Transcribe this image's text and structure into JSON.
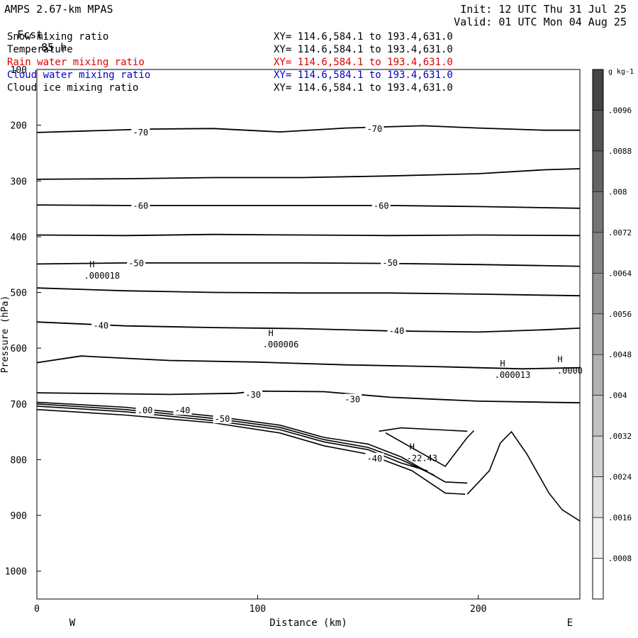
{
  "header": {
    "model": "AMPS 2.67-km MPAS",
    "forecast_label": "Fcst:",
    "forecast_value": "85 h",
    "init": "Init: 12 UTC Thu 31 Jul 25",
    "valid": "Valid: 01 UTC Mon 04 Aug 25"
  },
  "fields": [
    {
      "name": "Snow mixing ratio",
      "xy": "XY= 114.6,584.1 to 193.4,631.0",
      "color": "#000000"
    },
    {
      "name": "Temperature",
      "xy": "XY= 114.6,584.1 to 193.4,631.0",
      "color": "#000000"
    },
    {
      "name": "Rain water mixing ratio",
      "xy": "XY= 114.6,584.1 to 193.4,631.0",
      "color": "#e00000"
    },
    {
      "name": "Cloud water mixing ratio",
      "xy": "XY= 114.6,584.1 to 193.4,631.0",
      "color": "#0000cc"
    },
    {
      "name": "Cloud ice mixing ratio",
      "xy": "XY= 114.6,584.1 to 193.4,631.0",
      "color": "#000000"
    }
  ],
  "chart_data": {
    "type": "contour",
    "xlabel": "Distance (km)",
    "ylabel": "Pressure (hPa)",
    "xlim": [
      0,
      246
    ],
    "ylim": [
      100,
      1050
    ],
    "x_ticks": [
      0,
      100,
      200
    ],
    "x_tick_labels": [
      "0",
      "100",
      "200"
    ],
    "y_ticks": [
      100,
      200,
      300,
      400,
      500,
      600,
      700,
      800,
      900,
      1000
    ],
    "y_tick_labels": [
      "100",
      "200",
      "300",
      "400",
      "500",
      "600",
      "700",
      "800",
      "900",
      "1000"
    ],
    "left_label": "W",
    "right_label": "E",
    "temperature_contours": [
      {
        "label": "-70",
        "points": [
          [
            0,
            213
          ],
          [
            25,
            210
          ],
          [
            50,
            207
          ],
          [
            80,
            206
          ],
          [
            110,
            212
          ],
          [
            140,
            205
          ],
          [
            175,
            201
          ],
          [
            200,
            205
          ],
          [
            230,
            209
          ],
          [
            246,
            209
          ]
        ]
      },
      {
        "label": "",
        "points": [
          [
            0,
            297
          ],
          [
            40,
            296
          ],
          [
            80,
            294
          ],
          [
            120,
            294
          ],
          [
            160,
            291
          ],
          [
            200,
            287
          ],
          [
            230,
            280
          ],
          [
            246,
            278
          ]
        ]
      },
      {
        "label": "-60",
        "points": [
          [
            0,
            343
          ],
          [
            40,
            344
          ],
          [
            80,
            344
          ],
          [
            120,
            344
          ],
          [
            160,
            344
          ],
          [
            200,
            346
          ],
          [
            246,
            349
          ]
        ]
      },
      {
        "label": "",
        "points": [
          [
            0,
            397
          ],
          [
            40,
            398
          ],
          [
            80,
            396
          ],
          [
            120,
            397
          ],
          [
            160,
            398
          ],
          [
            200,
            397
          ],
          [
            246,
            398
          ]
        ]
      },
      {
        "label": "-50",
        "points": [
          [
            0,
            449
          ],
          [
            40,
            447
          ],
          [
            80,
            447
          ],
          [
            120,
            447
          ],
          [
            160,
            448
          ],
          [
            200,
            450
          ],
          [
            246,
            453
          ]
        ]
      },
      {
        "label": "",
        "points": [
          [
            0,
            492
          ],
          [
            40,
            497
          ],
          [
            80,
            500
          ],
          [
            120,
            501
          ],
          [
            160,
            501
          ],
          [
            200,
            503
          ],
          [
            246,
            506
          ]
        ]
      },
      {
        "label": "-40",
        "points": [
          [
            0,
            553
          ],
          [
            40,
            560
          ],
          [
            80,
            563
          ],
          [
            120,
            565
          ],
          [
            160,
            569
          ],
          [
            200,
            571
          ],
          [
            230,
            567
          ],
          [
            246,
            564
          ]
        ]
      },
      {
        "label": "",
        "points": [
          [
            0,
            626
          ],
          [
            20,
            614
          ],
          [
            60,
            622
          ],
          [
            100,
            625
          ],
          [
            140,
            630
          ],
          [
            180,
            633
          ],
          [
            220,
            637
          ],
          [
            246,
            635
          ]
        ]
      },
      {
        "label": "-30",
        "points": [
          [
            0,
            680
          ],
          [
            60,
            683
          ],
          [
            90,
            681
          ],
          [
            100,
            677
          ],
          [
            130,
            678
          ],
          [
            160,
            688
          ],
          [
            200,
            695
          ],
          [
            246,
            698
          ]
        ]
      }
    ],
    "temperature_contour_labels": [
      {
        "label": "-70",
        "x": 47,
        "y": 213
      },
      {
        "label": "-70",
        "x": 153,
        "y": 207
      },
      {
        "label": "-60",
        "x": 47,
        "y": 345
      },
      {
        "label": "-60",
        "x": 156,
        "y": 345
      },
      {
        "label": "-50",
        "x": 45,
        "y": 448
      },
      {
        "label": "-50",
        "x": 160,
        "y": 447
      },
      {
        "label": "-40",
        "x": 29,
        "y": 560
      },
      {
        "label": "-40",
        "x": 163,
        "y": 569
      },
      {
        "label": "-30",
        "x": 98,
        "y": 684
      },
      {
        "label": "-30",
        "x": 143,
        "y": 692
      },
      {
        "label": "-40",
        "x": 66,
        "y": 712
      },
      {
        "label": "-50",
        "x": 84,
        "y": 727
      },
      {
        "label": "-40",
        "x": 153,
        "y": 798
      },
      {
        "label": ".00",
        "x": 49,
        "y": 712
      }
    ],
    "highs": [
      {
        "label": "H",
        "value": ".000018",
        "x": 25,
        "y": 455
      },
      {
        "label": "H",
        "value": ".000006",
        "x": 106,
        "y": 578
      },
      {
        "label": "H",
        "value": ".000013",
        "x": 211,
        "y": 633
      },
      {
        "label": "H",
        "value": ".0000",
        "x": 237,
        "y": 625
      },
      {
        "label": "H",
        "value": "-22.43",
        "x": 170,
        "y": 782
      }
    ],
    "colorbar": {
      "unit": "g kg-1",
      "tick_labels": [
        ".0096",
        ".0088",
        ".008",
        ".0072",
        ".0064",
        ".0056",
        ".0048",
        ".004",
        ".0032",
        ".0024",
        ".0016",
        ".0008"
      ],
      "levels": 13,
      "max": 0.0104
    }
  }
}
